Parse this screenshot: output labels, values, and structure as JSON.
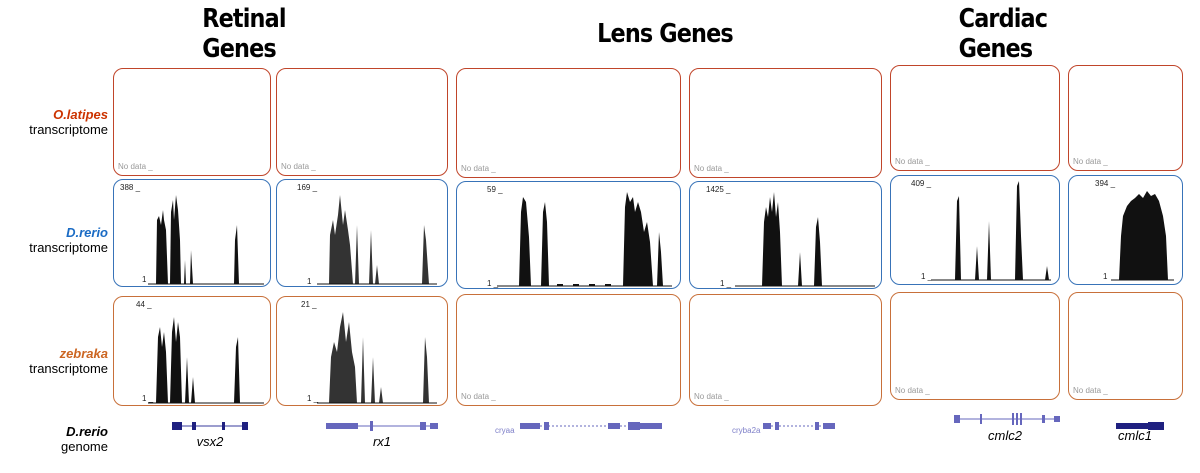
{
  "groups": [
    {
      "title": "Retinal Genes"
    },
    {
      "title": "Lens Genes"
    },
    {
      "title": "Cardiac Genes"
    }
  ],
  "rows": [
    {
      "species": "O.latipes",
      "label": "transcriptome",
      "color": "#cc3300"
    },
    {
      "species": "D.rerio",
      "label": "transcriptome",
      "color": "#1a6bc4"
    },
    {
      "species": "zebraka",
      "label": "transcriptome",
      "color": "#cc6622"
    }
  ],
  "genome_row": {
    "species": "D.rerio",
    "label": "genome"
  },
  "panel_colors": {
    "olatipes": "#c0452a",
    "drerio": "#3873b8",
    "zebraka": "#c8703a"
  },
  "no_data_text": "No data _",
  "genes": [
    {
      "name": "vsx2",
      "drerio_max": "388 _",
      "drerio_min": "1",
      "zebraka_max": "44 _",
      "zebraka_min": "1 _"
    },
    {
      "name": "rx1",
      "drerio_max": "169 _",
      "drerio_min": "1",
      "zebraka_max": "21 _",
      "zebraka_min": "1 _"
    },
    {
      "name": "cryaa",
      "drerio_max": "59 _",
      "drerio_min": "1 _"
    },
    {
      "name": "cryba2a",
      "drerio_max": "1425 _",
      "drerio_min": "1 _"
    },
    {
      "name": "cmlc2",
      "drerio_max": "409 _",
      "drerio_min": "1 _"
    },
    {
      "name": "cmlc1",
      "drerio_max": "394 _",
      "drerio_min": "1"
    }
  ],
  "track_color": "#5b5cb8"
}
